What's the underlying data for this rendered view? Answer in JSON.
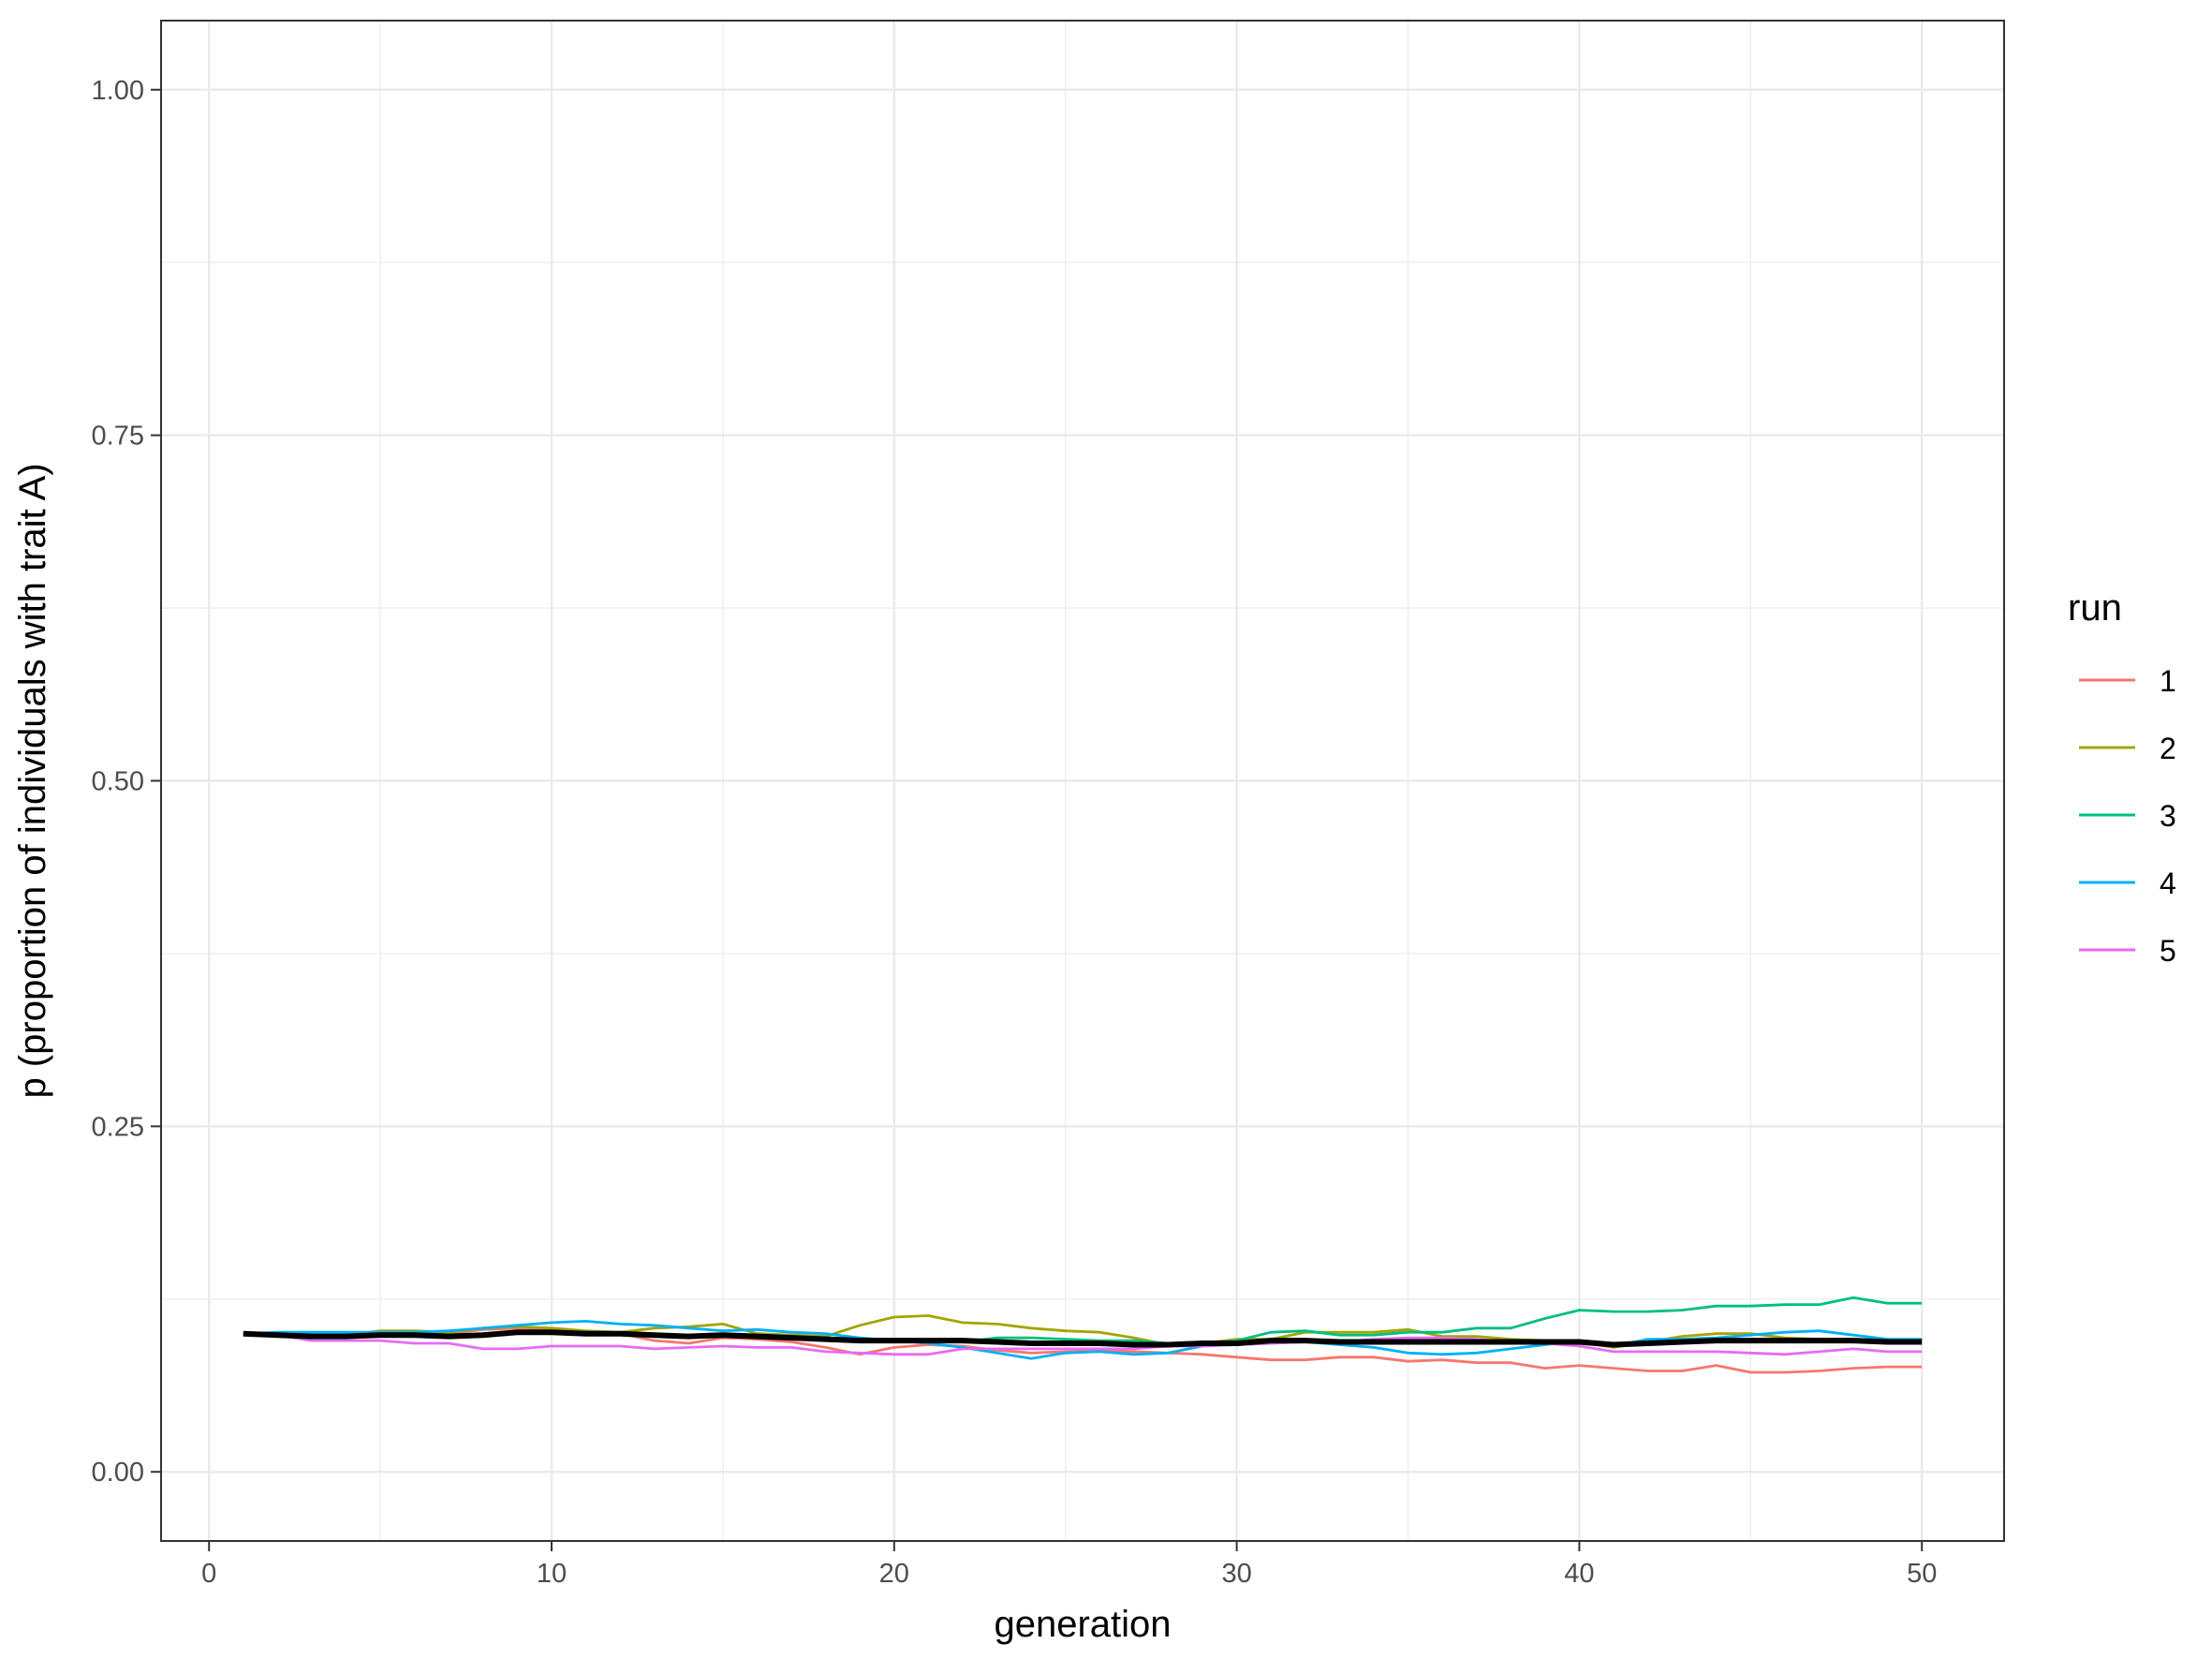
{
  "chart_data": {
    "type": "line",
    "title": "",
    "xlabel": "generation",
    "ylabel": "p (proportion of individuals with trait A)",
    "xlim": [
      -1.4,
      52.4
    ],
    "ylim": [
      -0.05,
      1.05
    ],
    "x_ticks": [
      0,
      10,
      20,
      30,
      40,
      50
    ],
    "x_tick_labels": [
      "0",
      "10",
      "20",
      "30",
      "40",
      "50"
    ],
    "y_ticks": [
      0,
      0.25,
      0.5,
      0.75,
      1.0
    ],
    "y_tick_labels": [
      "0.00",
      "0.25",
      "0.50",
      "0.75",
      "1.00"
    ],
    "grid": true,
    "legend": {
      "title": "run",
      "position": "right"
    },
    "x": [
      1,
      2,
      3,
      4,
      5,
      6,
      7,
      8,
      9,
      10,
      11,
      12,
      13,
      14,
      15,
      16,
      17,
      18,
      19,
      20,
      21,
      22,
      23,
      24,
      25,
      26,
      27,
      28,
      29,
      30,
      31,
      32,
      33,
      34,
      35,
      36,
      37,
      38,
      39,
      40,
      41,
      42,
      43,
      44,
      45,
      46,
      47,
      48,
      49,
      50
    ],
    "series": [
      {
        "name": "1",
        "color": "#F8766D",
        "values": [
          0.1,
          0.098,
          0.097,
          0.098,
          0.1,
          0.101,
          0.1,
          0.103,
          0.104,
          0.103,
          0.101,
          0.1,
          0.095,
          0.093,
          0.097,
          0.096,
          0.094,
          0.09,
          0.085,
          0.09,
          0.092,
          0.091,
          0.088,
          0.086,
          0.087,
          0.088,
          0.087,
          0.086,
          0.085,
          0.083,
          0.081,
          0.081,
          0.083,
          0.083,
          0.08,
          0.081,
          0.079,
          0.079,
          0.075,
          0.077,
          0.075,
          0.073,
          0.073,
          0.077,
          0.072,
          0.072,
          0.073,
          0.075,
          0.076,
          0.076
        ]
      },
      {
        "name": "2",
        "color": "#A3A500",
        "values": [
          0.1,
          0.099,
          0.098,
          0.099,
          0.102,
          0.102,
          0.101,
          0.104,
          0.105,
          0.104,
          0.102,
          0.101,
          0.104,
          0.105,
          0.107,
          0.1,
          0.099,
          0.098,
          0.106,
          0.112,
          0.113,
          0.108,
          0.107,
          0.104,
          0.102,
          0.101,
          0.097,
          0.092,
          0.093,
          0.096,
          0.096,
          0.101,
          0.101,
          0.101,
          0.103,
          0.098,
          0.098,
          0.096,
          0.095,
          0.094,
          0.09,
          0.094,
          0.098,
          0.1,
          0.1,
          0.097,
          0.096,
          0.096,
          0.095,
          0.094
        ]
      },
      {
        "name": "3",
        "color": "#00BF7D",
        "values": [
          0.1,
          0.099,
          0.098,
          0.098,
          0.098,
          0.098,
          0.098,
          0.1,
          0.101,
          0.101,
          0.101,
          0.1,
          0.099,
          0.098,
          0.099,
          0.099,
          0.098,
          0.097,
          0.096,
          0.095,
          0.094,
          0.094,
          0.097,
          0.097,
          0.096,
          0.095,
          0.095,
          0.093,
          0.093,
          0.095,
          0.101,
          0.102,
          0.099,
          0.099,
          0.101,
          0.101,
          0.104,
          0.104,
          0.111,
          0.117,
          0.116,
          0.116,
          0.117,
          0.12,
          0.12,
          0.121,
          0.121,
          0.126,
          0.122,
          0.122
        ]
      },
      {
        "name": "4",
        "color": "#00B0F6",
        "values": [
          0.1,
          0.101,
          0.101,
          0.101,
          0.101,
          0.101,
          0.102,
          0.104,
          0.106,
          0.108,
          0.109,
          0.107,
          0.106,
          0.104,
          0.102,
          0.103,
          0.101,
          0.1,
          0.097,
          0.095,
          0.093,
          0.09,
          0.086,
          0.082,
          0.086,
          0.087,
          0.085,
          0.086,
          0.091,
          0.092,
          0.093,
          0.094,
          0.092,
          0.09,
          0.086,
          0.085,
          0.086,
          0.089,
          0.092,
          0.095,
          0.091,
          0.096,
          0.096,
          0.097,
          0.099,
          0.101,
          0.102,
          0.099,
          0.096,
          0.096
        ]
      },
      {
        "name": "5",
        "color": "#E76BF3",
        "values": [
          0.1,
          0.099,
          0.095,
          0.095,
          0.095,
          0.093,
          0.093,
          0.089,
          0.089,
          0.091,
          0.091,
          0.091,
          0.089,
          0.09,
          0.091,
          0.09,
          0.09,
          0.087,
          0.086,
          0.085,
          0.085,
          0.089,
          0.089,
          0.089,
          0.089,
          0.089,
          0.089,
          0.091,
          0.091,
          0.092,
          0.093,
          0.094,
          0.094,
          0.096,
          0.097,
          0.097,
          0.096,
          0.094,
          0.093,
          0.091,
          0.087,
          0.087,
          0.087,
          0.087,
          0.086,
          0.085,
          0.087,
          0.089,
          0.087,
          0.087
        ]
      },
      {
        "name": "",
        "color": "#000000",
        "values": [
          0.1,
          0.099,
          0.098,
          0.098,
          0.099,
          0.099,
          0.098,
          0.099,
          0.101,
          0.101,
          0.1,
          0.1,
          0.099,
          0.098,
          0.099,
          0.098,
          0.097,
          0.096,
          0.095,
          0.095,
          0.095,
          0.095,
          0.094,
          0.093,
          0.093,
          0.093,
          0.092,
          0.092,
          0.093,
          0.093,
          0.095,
          0.095,
          0.094,
          0.094,
          0.094,
          0.094,
          0.094,
          0.094,
          0.094,
          0.094,
          0.092,
          0.093,
          0.094,
          0.095,
          0.095,
          0.095,
          0.095,
          0.095,
          0.094,
          0.094
        ]
      }
    ]
  }
}
